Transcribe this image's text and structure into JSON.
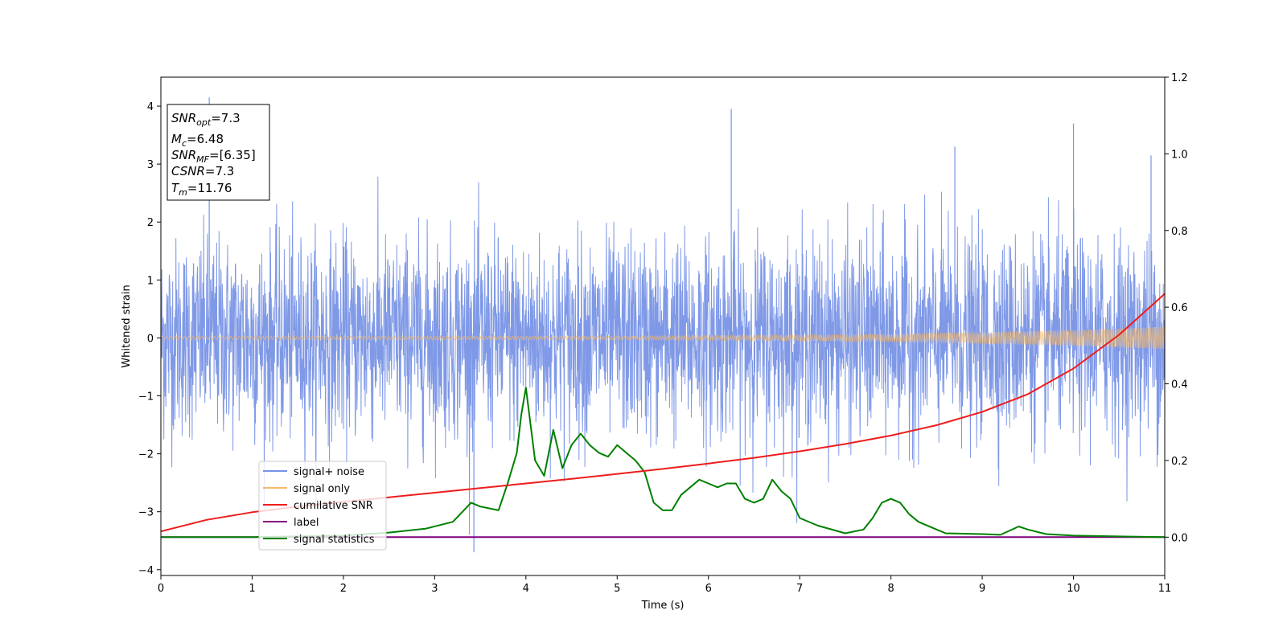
{
  "chart_data": {
    "type": "line",
    "xlabel": "Time (s)",
    "ylabel": "Whitened strain",
    "xlim": [
      0,
      11
    ],
    "ylim": [
      -4.1,
      4.5
    ],
    "y2lim": [
      -0.1,
      1.2
    ],
    "grid": false,
    "legend_position": "lower-left",
    "x_ticks": [
      "0",
      "1",
      "2",
      "3",
      "4",
      "5",
      "6",
      "7",
      "8",
      "9",
      "10",
      "11"
    ],
    "y_ticks": [
      "4",
      "3",
      "2",
      "1",
      "0",
      "−1",
      "−2",
      "−3",
      "−4"
    ],
    "y2_ticks": [
      "1.2",
      "1.0",
      "0.8",
      "0.6",
      "0.4",
      "0.2",
      "0.0"
    ],
    "info_box": {
      "snr_opt": {
        "var": "SNR",
        "sub": "opt",
        "value": "=7.3"
      },
      "mc": {
        "var": "M",
        "sub": "c",
        "value": "=6.48"
      },
      "snr_mf": {
        "var": "SNR",
        "sub": "MF",
        "value": "=[6.35]"
      },
      "csnr": {
        "var": "CSNR",
        "sub": "",
        "value": "=7.3"
      },
      "tm": {
        "var": "T",
        "sub": "m",
        "value": "=11.76"
      }
    },
    "series": [
      {
        "name": "signal+ noise",
        "color": "#7893e6",
        "axis": "left",
        "kind": "noise",
        "band_core": [
          -1.5,
          1.5
        ],
        "band_extreme": [
          -3.7,
          4.2
        ],
        "sample_spikes": [
          [
            0.53,
            4.15
          ],
          [
            3.43,
            -3.7
          ],
          [
            6.25,
            3.95
          ],
          [
            10.0,
            3.7
          ],
          [
            10.85,
            3.15
          ],
          [
            8.7,
            3.3
          ]
        ]
      },
      {
        "name": "signal only",
        "color": "#f5b96a",
        "axis": "left",
        "kind": "chirp",
        "amplitude": [
          [
            0,
            0.03
          ],
          [
            5,
            0.03
          ],
          [
            8,
            0.06
          ],
          [
            10,
            0.13
          ],
          [
            11,
            0.19
          ]
        ]
      },
      {
        "name": "cumilative SNR",
        "color": "#ee1c1c",
        "axis": "right",
        "x": [
          0,
          0.5,
          1,
          1.5,
          2,
          2.5,
          3,
          3.5,
          4,
          4.5,
          5,
          5.5,
          6,
          6.5,
          7,
          7.5,
          8,
          8.5,
          9,
          9.5,
          10,
          10.5,
          11
        ],
        "values": [
          0.015,
          0.045,
          0.065,
          0.08,
          0.092,
          0.104,
          0.116,
          0.128,
          0.14,
          0.152,
          0.165,
          0.178,
          0.192,
          0.207,
          0.224,
          0.243,
          0.265,
          0.292,
          0.327,
          0.373,
          0.44,
          0.528,
          0.635
        ]
      },
      {
        "name": "label",
        "color": "#800080",
        "axis": "right",
        "x": [
          0,
          11
        ],
        "values": [
          0.0,
          0.0
        ]
      },
      {
        "name": "signal statistics",
        "color": "#008000",
        "axis": "right",
        "x": [
          0,
          1,
          2,
          2.5,
          2.9,
          3.2,
          3.4,
          3.5,
          3.7,
          3.8,
          3.9,
          3.95,
          4.0,
          4.1,
          4.2,
          4.3,
          4.4,
          4.5,
          4.6,
          4.7,
          4.8,
          4.9,
          5.0,
          5.1,
          5.2,
          5.3,
          5.4,
          5.5,
          5.6,
          5.7,
          5.8,
          5.9,
          6.0,
          6.1,
          6.2,
          6.3,
          6.4,
          6.5,
          6.6,
          6.7,
          6.8,
          6.9,
          7.0,
          7.2,
          7.5,
          7.7,
          7.8,
          7.9,
          8.0,
          8.1,
          8.2,
          8.3,
          8.5,
          8.6,
          9.0,
          9.2,
          9.4,
          9.5,
          9.7,
          10.0,
          10.5,
          11.0
        ],
        "values": [
          0.0,
          0.0,
          0.004,
          0.012,
          0.022,
          0.04,
          0.09,
          0.08,
          0.07,
          0.14,
          0.22,
          0.32,
          0.39,
          0.2,
          0.16,
          0.28,
          0.18,
          0.24,
          0.27,
          0.24,
          0.22,
          0.21,
          0.24,
          0.22,
          0.2,
          0.17,
          0.09,
          0.07,
          0.07,
          0.11,
          0.13,
          0.15,
          0.14,
          0.13,
          0.14,
          0.14,
          0.1,
          0.09,
          0.1,
          0.15,
          0.12,
          0.1,
          0.05,
          0.03,
          0.01,
          0.02,
          0.05,
          0.09,
          0.1,
          0.09,
          0.06,
          0.04,
          0.02,
          0.01,
          0.008,
          0.006,
          0.028,
          0.02,
          0.008,
          0.004,
          0.002,
          0.0
        ]
      }
    ]
  }
}
